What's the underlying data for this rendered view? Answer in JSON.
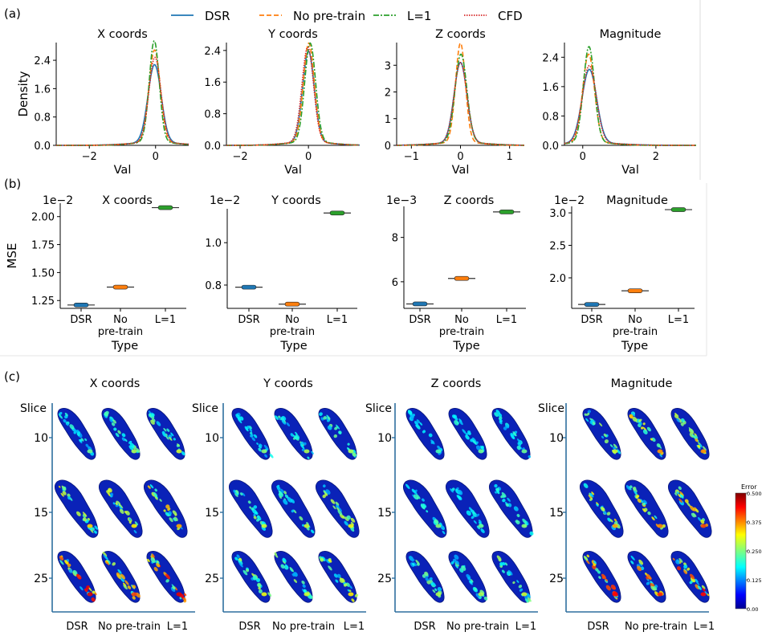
{
  "panel_labels": {
    "a": "(a)",
    "b": "(b)",
    "c": "(c)"
  },
  "colors": {
    "dsr": "#1f77b4",
    "nopretrain": "#ff7f0e",
    "l1": "#2ca02c",
    "cfd": "#d62728",
    "axis_c": "#2e6f9e"
  },
  "legend": [
    {
      "label": "DSR",
      "color": "#1f77b4",
      "dash": ""
    },
    {
      "label": "No pre-train",
      "color": "#ff7f0e",
      "dash": "6,3"
    },
    {
      "label": "L=1",
      "color": "#2ca02c",
      "dash": "7,2,2,2"
    },
    {
      "label": "CFD",
      "color": "#d62728",
      "dash": "1.5,1.5"
    }
  ],
  "chart_data": [
    {
      "panel": "a",
      "type": "line",
      "title": "X coords",
      "xlabel": "Val",
      "ylabel": "Density",
      "xlim": [
        -3.0,
        1.0
      ],
      "ylim": [
        0,
        2.9
      ],
      "xticks": [
        -2,
        0
      ],
      "xtick_labels": [
        "−2",
        "0"
      ],
      "yticks": [
        0,
        0.8,
        1.6,
        2.4
      ],
      "ytick_labels": [
        "0.0",
        "0.8",
        "1.6",
        "2.4"
      ],
      "series": [
        {
          "name": "DSR",
          "peak": 2.2,
          "mu": -0.03,
          "sigma": 0.2
        },
        {
          "name": "No pre-train",
          "peak": 2.6,
          "mu": -0.03,
          "sigma": 0.17
        },
        {
          "name": "L=1",
          "peak": 2.85,
          "mu": -0.04,
          "sigma": 0.15
        },
        {
          "name": "CFD",
          "peak": 2.4,
          "mu": -0.02,
          "sigma": 0.18
        }
      ]
    },
    {
      "panel": "a",
      "type": "line",
      "title": "Y coords",
      "xlabel": "Val",
      "ylabel": "",
      "xlim": [
        -2.4,
        1.5
      ],
      "ylim": [
        0,
        2.6
      ],
      "xticks": [
        -2,
        0
      ],
      "xtick_labels": [
        "−2",
        "0"
      ],
      "yticks": [
        0,
        0.8,
        1.6,
        2.4
      ],
      "ytick_labels": [
        "0.0",
        "0.8",
        "1.6",
        "2.4"
      ],
      "series": [
        {
          "name": "DSR",
          "peak": 2.3,
          "mu": 0.0,
          "sigma": 0.17
        },
        {
          "name": "No pre-train",
          "peak": 2.5,
          "mu": 0.01,
          "sigma": 0.16
        },
        {
          "name": "L=1",
          "peak": 2.5,
          "mu": 0.05,
          "sigma": 0.16
        },
        {
          "name": "CFD",
          "peak": 2.4,
          "mu": -0.02,
          "sigma": 0.17
        }
      ]
    },
    {
      "panel": "a",
      "type": "line",
      "title": "Z coords",
      "xlabel": "Val",
      "ylabel": "",
      "xlim": [
        -1.3,
        1.3
      ],
      "ylim": [
        0,
        3.85
      ],
      "xticks": [
        -1,
        0,
        1
      ],
      "xtick_labels": [
        "−1",
        "0",
        "1"
      ],
      "yticks": [
        0,
        1,
        2,
        3
      ],
      "ytick_labels": [
        "0",
        "1",
        "2",
        "3"
      ],
      "series": [
        {
          "name": "DSR",
          "peak": 3.0,
          "mu": 0.0,
          "sigma": 0.13
        },
        {
          "name": "No pre-train",
          "peak": 3.7,
          "mu": 0.0,
          "sigma": 0.1
        },
        {
          "name": "L=1",
          "peak": 3.3,
          "mu": 0.01,
          "sigma": 0.12
        },
        {
          "name": "CFD",
          "peak": 3.0,
          "mu": 0.0,
          "sigma": 0.13
        }
      ]
    },
    {
      "panel": "a",
      "type": "line",
      "title": "Magnitude",
      "xlabel": "Val",
      "ylabel": "",
      "xlim": [
        -0.5,
        3.1
      ],
      "ylim": [
        0,
        2.8
      ],
      "xticks": [
        0,
        2
      ],
      "xtick_labels": [
        "0",
        "2"
      ],
      "yticks": [
        0,
        0.8,
        1.6,
        2.4
      ],
      "ytick_labels": [
        "0.0",
        "0.8",
        "1.6",
        "2.4"
      ],
      "series": [
        {
          "name": "DSR",
          "peak": 2.0,
          "mu": 0.18,
          "sigma": 0.2
        },
        {
          "name": "No pre-train",
          "peak": 2.4,
          "mu": 0.16,
          "sigma": 0.16
        },
        {
          "name": "L=1",
          "peak": 2.6,
          "mu": 0.17,
          "sigma": 0.15
        },
        {
          "name": "CFD",
          "peak": 2.1,
          "mu": 0.18,
          "sigma": 0.19
        }
      ]
    },
    {
      "panel": "b",
      "type": "scatter",
      "title": "X coords",
      "xlabel": "Type",
      "ylabel": "MSE",
      "scale_label": "1e−2",
      "categories": [
        "DSR",
        "No pre-train",
        "L=1"
      ],
      "values": [
        1.21,
        1.37,
        2.08
      ],
      "ylim": [
        1.18,
        2.12
      ],
      "yticks": [
        1.25,
        1.5,
        1.75,
        2.0
      ],
      "ytick_labels": [
        "1.25",
        "1.50",
        "1.75",
        "2.00"
      ]
    },
    {
      "panel": "b",
      "type": "scatter",
      "title": "Y coords",
      "xlabel": "Type",
      "ylabel": "",
      "scale_label": "1e−2",
      "categories": [
        "DSR",
        "No pre-train",
        "L=1"
      ],
      "values": [
        0.79,
        0.71,
        1.14
      ],
      "ylim": [
        0.69,
        1.16
      ],
      "yticks": [
        0.8,
        1.0
      ],
      "ytick_labels": [
        "0.8",
        "1.0"
      ]
    },
    {
      "panel": "b",
      "type": "scatter",
      "title": "Z coords",
      "xlabel": "Type",
      "ylabel": "",
      "scale_label": "1e−3",
      "categories": [
        "DSR",
        "No pre-train",
        "L=1"
      ],
      "values": [
        5.0,
        6.15,
        9.15
      ],
      "ylim": [
        4.8,
        9.4
      ],
      "yticks": [
        6,
        8
      ],
      "ytick_labels": [
        "6",
        "8"
      ]
    },
    {
      "panel": "b",
      "type": "scatter",
      "title": "Magnitude",
      "xlabel": "Type",
      "ylabel": "",
      "scale_label": "1e−2",
      "categories": [
        "DSR",
        "No pre-train",
        "L=1"
      ],
      "values": [
        1.59,
        1.8,
        3.05
      ],
      "ylim": [
        1.53,
        3.1
      ],
      "yticks": [
        2.0,
        2.5,
        3.0
      ],
      "ytick_labels": [
        "2.0",
        "2.5",
        "3.0"
      ]
    },
    {
      "panel": "c",
      "type": "heatmap",
      "titles": [
        "X coords",
        "Y coords",
        "Z coords",
        "Magnitude"
      ],
      "row_header": "Slice",
      "slices": [
        "10",
        "15",
        "25"
      ],
      "columns": [
        "DSR",
        "No pre-train",
        "L=1"
      ],
      "hotspot_intensity": [
        [
          [
            0.2,
            0.3,
            0.35
          ],
          [
            0.5,
            0.45,
            0.55
          ],
          [
            0.85,
            0.7,
            0.85
          ]
        ],
        [
          [
            0.25,
            0.3,
            0.3
          ],
          [
            0.35,
            0.35,
            0.4
          ],
          [
            0.4,
            0.35,
            0.45
          ]
        ],
        [
          [
            0.15,
            0.2,
            0.2
          ],
          [
            0.25,
            0.2,
            0.25
          ],
          [
            0.3,
            0.3,
            0.35
          ]
        ],
        [
          [
            0.35,
            0.6,
            0.6
          ],
          [
            0.55,
            0.6,
            0.7
          ],
          [
            0.8,
            0.75,
            0.8
          ]
        ]
      ],
      "colorbar": {
        "title": "Error",
        "ticks": [
          "0.500",
          "0.375",
          "0.250",
          "0.125",
          "0.00"
        ]
      }
    }
  ]
}
